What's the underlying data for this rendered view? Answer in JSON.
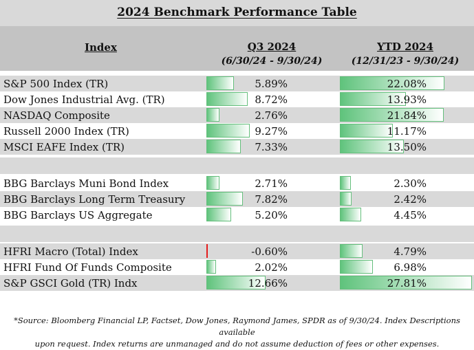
{
  "title": "2024 Benchmark Performance Table",
  "header": {
    "index": "Index",
    "q3": "Q3 2024",
    "q3_sub": "(6/30/24 - 9/30/24)",
    "ytd": "YTD 2024",
    "ytd_sub": "(12/31/23 - 9/30/24)"
  },
  "max_value": 27.81,
  "groups": [
    {
      "rows": [
        {
          "name": "S&P 500 Index (TR)",
          "q3": "5.89%",
          "q3_value": 5.89,
          "ytd": "22.08%",
          "ytd_value": 22.08
        },
        {
          "name": "Dow Jones Industrial Avg. (TR)",
          "q3": "8.72%",
          "q3_value": 8.72,
          "ytd": "13.93%",
          "ytd_value": 13.93
        },
        {
          "name": "NASDAQ Composite",
          "q3": "2.76%",
          "q3_value": 2.76,
          "ytd": "21.84%",
          "ytd_value": 21.84
        },
        {
          "name": "Russell 2000 Index (TR)",
          "q3": "9.27%",
          "q3_value": 9.27,
          "ytd": "11.17%",
          "ytd_value": 11.17
        },
        {
          "name": "MSCI EAFE Index (TR)",
          "q3": "7.33%",
          "q3_value": 7.33,
          "ytd": "13.50%",
          "ytd_value": 13.5
        }
      ]
    },
    {
      "rows": [
        {
          "name": "BBG Barclays Muni Bond Index",
          "q3": "2.71%",
          "q3_value": 2.71,
          "ytd": "2.30%",
          "ytd_value": 2.3
        },
        {
          "name": "BBG Barclays Long Term Treasury",
          "q3": "7.82%",
          "q3_value": 7.82,
          "ytd": "2.42%",
          "ytd_value": 2.42
        },
        {
          "name": "BBG Barclays US Aggregate",
          "q3": "5.20%",
          "q3_value": 5.2,
          "ytd": "4.45%",
          "ytd_value": 4.45
        }
      ]
    },
    {
      "rows": [
        {
          "name": "HFRI Macro (Total) Index",
          "q3": "-0.60%",
          "q3_value": -0.6,
          "ytd": "4.79%",
          "ytd_value": 4.79
        },
        {
          "name": "HFRI Fund Of Funds Composite",
          "q3": "2.02%",
          "q3_value": 2.02,
          "ytd": "6.98%",
          "ytd_value": 6.98
        },
        {
          "name": "S&P GSCI Gold (TR) Indx",
          "q3": "12.66%",
          "q3_value": 12.66,
          "ytd": "27.81%",
          "ytd_value": 27.81
        }
      ]
    }
  ],
  "footnote_line1": "*Source: Bloomberg Financial LP, Factset, Dow Jones, Raymond James, SPDR  as of 9/30/24. Index Descriptions available",
  "footnote_line2": "upon request. Index returns are unmanaged and do not assume deduction of fees or other expenses.",
  "colors": {
    "bar_positive": "#63be7b",
    "bar_negative": "#e41b1b",
    "header_bg": "#c3c3c3",
    "band_bg": "#d9d9d9"
  }
}
